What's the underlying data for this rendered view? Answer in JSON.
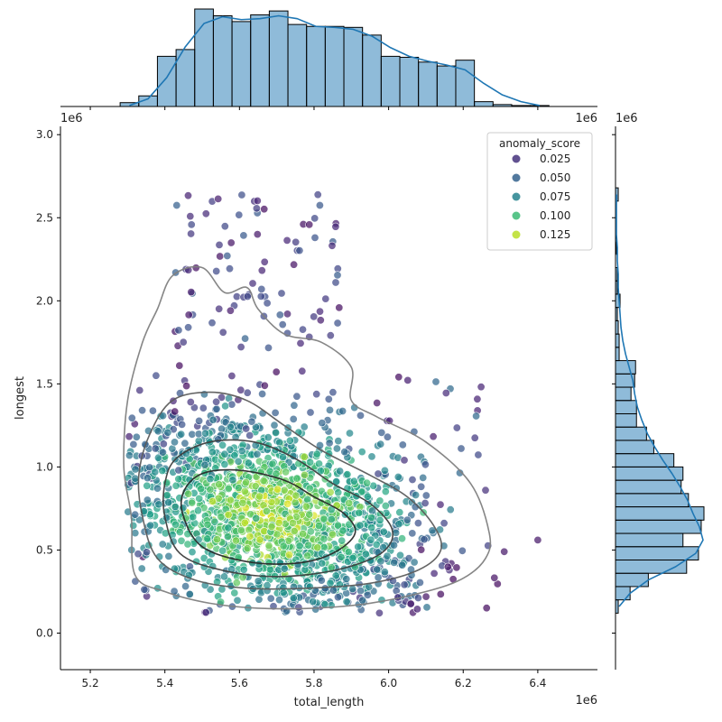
{
  "chart_data": {
    "type": "scatter",
    "title": "",
    "xlabel": "total_length",
    "ylabel": "longest",
    "x_offset_label": "1e6",
    "y_offset_label": "1e6",
    "xlim": [
      5.12,
      6.56
    ],
    "ylim": [
      -0.22,
      3.05
    ],
    "x_ticks": [
      "5.2",
      "5.4",
      "5.6",
      "5.8",
      "6.0",
      "6.2",
      "6.4"
    ],
    "y_ticks": [
      "0.0",
      "0.5",
      "1.0",
      "1.5",
      "2.0",
      "2.5",
      "3.0"
    ],
    "legend": {
      "title": "anomaly_score",
      "placement": "top-right",
      "entries": [
        "0.025",
        "0.050",
        "0.075",
        "0.100",
        "0.125"
      ],
      "entry_values": [
        0.025,
        0.05,
        0.075,
        0.1,
        0.125
      ],
      "entry_colors": [
        "#45337d",
        "#34618d",
        "#26838e",
        "#3cbb75",
        "#bade28"
      ]
    },
    "colormap": "viridis",
    "marginal_x_hist": {
      "bin_edges": [
        5.28,
        5.33,
        5.38,
        5.43,
        5.48,
        5.53,
        5.58,
        5.63,
        5.68,
        5.73,
        5.78,
        5.83,
        5.88,
        5.93,
        5.98,
        6.03,
        6.08,
        6.13,
        6.18,
        6.23,
        6.28,
        6.33,
        6.38,
        6.43
      ],
      "counts": [
        4,
        11,
        52,
        59,
        101,
        94,
        88,
        95,
        99,
        85,
        83,
        83,
        82,
        74,
        52,
        51,
        46,
        42,
        48,
        5,
        2,
        1,
        1
      ],
      "kde_y": [
        1,
        8,
        30,
        62,
        86,
        93,
        90,
        91,
        94,
        91,
        83,
        82,
        80,
        73,
        61,
        52,
        47,
        43,
        38,
        24,
        12,
        5,
        1
      ]
    },
    "marginal_y_hist": {
      "bin_edges": [
        0.12,
        0.2,
        0.28,
        0.36,
        0.44,
        0.52,
        0.6,
        0.68,
        0.76,
        0.84,
        0.92,
        1.0,
        1.08,
        1.16,
        1.24,
        1.32,
        1.4,
        1.48,
        1.56,
        1.64,
        1.72,
        1.8,
        1.88,
        1.96,
        2.04,
        2.12,
        2.2,
        2.28,
        2.36,
        2.44,
        2.52,
        2.6,
        2.68
      ],
      "counts": [
        3,
        16,
        36,
        78,
        91,
        74,
        94,
        97,
        80,
        72,
        74,
        64,
        42,
        34,
        23,
        23,
        17,
        21,
        22,
        4,
        4,
        3,
        2,
        5,
        2,
        2,
        0,
        1,
        0,
        1,
        1,
        3
      ],
      "kde_x": [
        4,
        16,
        36,
        66,
        88,
        96,
        92,
        85,
        79,
        71,
        62,
        52,
        43,
        35,
        29,
        24,
        21,
        19,
        15,
        11,
        8,
        6,
        5,
        4,
        3,
        3,
        2,
        2,
        1,
        1,
        1,
        1
      ]
    },
    "kde_contours": [
      {
        "color": "#808080",
        "points": [
          [
            5.31,
            0.7
          ],
          [
            5.32,
            0.35
          ],
          [
            5.4,
            0.25
          ],
          [
            5.52,
            0.18
          ],
          [
            5.65,
            0.15
          ],
          [
            5.8,
            0.15
          ],
          [
            5.95,
            0.18
          ],
          [
            6.1,
            0.25
          ],
          [
            6.2,
            0.33
          ],
          [
            6.26,
            0.45
          ],
          [
            6.27,
            0.6
          ],
          [
            6.22,
            0.9
          ],
          [
            6.1,
            1.15
          ],
          [
            5.97,
            1.3
          ],
          [
            5.9,
            1.4
          ],
          [
            5.9,
            1.6
          ],
          [
            5.82,
            1.75
          ],
          [
            5.72,
            1.8
          ],
          [
            5.65,
            1.95
          ],
          [
            5.62,
            2.08
          ],
          [
            5.56,
            2.05
          ],
          [
            5.5,
            2.2
          ],
          [
            5.42,
            2.15
          ],
          [
            5.38,
            1.95
          ],
          [
            5.34,
            1.75
          ],
          [
            5.3,
            1.4
          ],
          [
            5.29,
            1.0
          ]
        ]
      },
      {
        "color": "#5c5c5c",
        "points": [
          [
            5.34,
            0.7
          ],
          [
            5.38,
            0.45
          ],
          [
            5.48,
            0.32
          ],
          [
            5.62,
            0.27
          ],
          [
            5.78,
            0.27
          ],
          [
            5.95,
            0.3
          ],
          [
            6.08,
            0.38
          ],
          [
            6.14,
            0.5
          ],
          [
            6.12,
            0.65
          ],
          [
            6.05,
            0.82
          ],
          [
            5.95,
            0.95
          ],
          [
            5.82,
            1.1
          ],
          [
            5.72,
            1.25
          ],
          [
            5.62,
            1.4
          ],
          [
            5.52,
            1.45
          ],
          [
            5.42,
            1.4
          ],
          [
            5.36,
            1.2
          ],
          [
            5.33,
            0.95
          ]
        ]
      },
      {
        "color": "#3e3e3e",
        "points": [
          [
            5.4,
            0.7
          ],
          [
            5.44,
            0.48
          ],
          [
            5.55,
            0.38
          ],
          [
            5.7,
            0.34
          ],
          [
            5.86,
            0.38
          ],
          [
            5.98,
            0.48
          ],
          [
            6.01,
            0.62
          ],
          [
            5.95,
            0.78
          ],
          [
            5.85,
            0.9
          ],
          [
            5.75,
            1.05
          ],
          [
            5.64,
            1.15
          ],
          [
            5.52,
            1.15
          ],
          [
            5.43,
            1.05
          ],
          [
            5.4,
            0.9
          ]
        ]
      },
      {
        "color": "#2a2a2a",
        "points": [
          [
            5.45,
            0.7
          ],
          [
            5.5,
            0.52
          ],
          [
            5.62,
            0.43
          ],
          [
            5.75,
            0.42
          ],
          [
            5.85,
            0.48
          ],
          [
            5.91,
            0.6
          ],
          [
            5.88,
            0.72
          ],
          [
            5.8,
            0.82
          ],
          [
            5.72,
            0.92
          ],
          [
            5.6,
            0.98
          ],
          [
            5.5,
            0.96
          ],
          [
            5.45,
            0.85
          ]
        ]
      }
    ]
  }
}
